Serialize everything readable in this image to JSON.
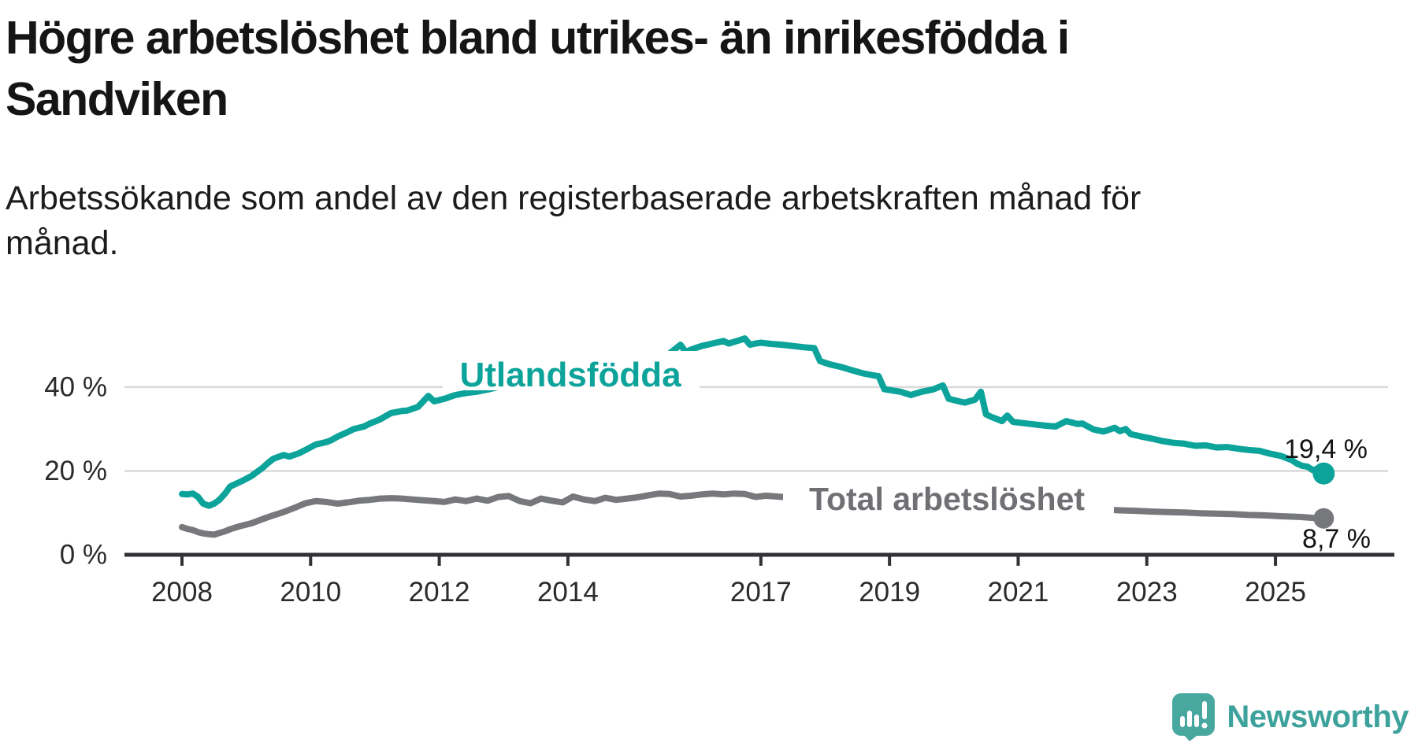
{
  "header": {
    "title_line1": "Högre arbetslöshet bland utrikes- än inrikesfödda i",
    "title_line2": "Sandviken",
    "subtitle_line1": "Arbetssökande som andel av den registerbaserade arbetskraften månad för",
    "subtitle_line2": "månad."
  },
  "chart_data": {
    "type": "line",
    "title": "Högre arbetslöshet bland utrikes- än inrikesfödda i Sandviken",
    "subtitle": "Arbetssökande som andel av den registerbaserade arbetskraften månad för månad.",
    "x_unit": "year, monthly observations",
    "xlim": [
      2007.8,
      2026.2
    ],
    "ylim": [
      0,
      55
    ],
    "grid": "horizontal",
    "legend_position": "inline-labels",
    "x_ticks": [
      {
        "value": 2008,
        "label": "2008"
      },
      {
        "value": 2010,
        "label": "2010"
      },
      {
        "value": 2012,
        "label": "2012"
      },
      {
        "value": 2014,
        "label": "2014"
      },
      {
        "value": 2017,
        "label": "2017"
      },
      {
        "value": 2019,
        "label": "2019"
      },
      {
        "value": 2021,
        "label": "2021"
      },
      {
        "value": 2023,
        "label": "2023"
      },
      {
        "value": 2025,
        "label": "2025"
      }
    ],
    "y_ticks": [
      {
        "value": 0,
        "label": "0 %"
      },
      {
        "value": 20,
        "label": "20 %"
      },
      {
        "value": 40,
        "label": "40 %"
      }
    ],
    "series": [
      {
        "id": "utlandsfodda",
        "name": "Utlandsfödda",
        "color": "#0ca39a",
        "end_label": "19,4 %",
        "end_value": 19.4,
        "points": [
          [
            2008.0,
            14.5
          ],
          [
            2008.08,
            14.4
          ],
          [
            2008.17,
            14.6
          ],
          [
            2008.25,
            13.8
          ],
          [
            2008.33,
            12.2
          ],
          [
            2008.42,
            11.7
          ],
          [
            2008.5,
            12.2
          ],
          [
            2008.58,
            13.1
          ],
          [
            2008.67,
            14.6
          ],
          [
            2008.75,
            16.3
          ],
          [
            2008.92,
            17.5
          ],
          [
            2009.08,
            18.8
          ],
          [
            2009.25,
            20.7
          ],
          [
            2009.33,
            21.8
          ],
          [
            2009.42,
            22.9
          ],
          [
            2009.58,
            23.8
          ],
          [
            2009.67,
            23.4
          ],
          [
            2009.83,
            24.3
          ],
          [
            2009.92,
            25.0
          ],
          [
            2010.08,
            26.3
          ],
          [
            2010.25,
            26.9
          ],
          [
            2010.33,
            27.4
          ],
          [
            2010.42,
            28.2
          ],
          [
            2010.58,
            29.3
          ],
          [
            2010.67,
            30.0
          ],
          [
            2010.83,
            30.6
          ],
          [
            2010.92,
            31.3
          ],
          [
            2011.08,
            32.3
          ],
          [
            2011.25,
            33.8
          ],
          [
            2011.42,
            34.3
          ],
          [
            2011.5,
            34.4
          ],
          [
            2011.67,
            35.3
          ],
          [
            2011.83,
            37.9
          ],
          [
            2011.92,
            36.6
          ],
          [
            2012.08,
            37.2
          ],
          [
            2012.25,
            38.1
          ],
          [
            2012.42,
            38.6
          ],
          [
            2012.58,
            38.9
          ],
          [
            2012.75,
            39.4
          ],
          [
            2012.92,
            40.0
          ],
          [
            2013.17,
            40.5
          ],
          [
            2013.42,
            41.2
          ],
          [
            2013.67,
            41.9
          ],
          [
            2013.92,
            42.6
          ],
          [
            2014.17,
            43.3
          ],
          [
            2014.42,
            44.0
          ],
          [
            2014.67,
            44.6
          ],
          [
            2014.92,
            45.1
          ],
          [
            2015.17,
            45.5
          ],
          [
            2015.42,
            46.6
          ],
          [
            2015.58,
            48.0
          ],
          [
            2015.75,
            50.1
          ],
          [
            2015.83,
            48.4
          ],
          [
            2015.92,
            49.0
          ],
          [
            2016.08,
            49.8
          ],
          [
            2016.25,
            50.4
          ],
          [
            2016.42,
            51.0
          ],
          [
            2016.5,
            50.4
          ],
          [
            2016.67,
            51.2
          ],
          [
            2016.75,
            51.6
          ],
          [
            2016.83,
            50.1
          ],
          [
            2016.92,
            50.4
          ],
          [
            2017.0,
            50.6
          ],
          [
            2017.17,
            50.3
          ],
          [
            2017.33,
            50.1
          ],
          [
            2017.5,
            49.8
          ],
          [
            2017.67,
            49.5
          ],
          [
            2017.83,
            49.3
          ],
          [
            2017.92,
            46.2
          ],
          [
            2018.08,
            45.4
          ],
          [
            2018.25,
            44.8
          ],
          [
            2018.42,
            44.0
          ],
          [
            2018.58,
            43.3
          ],
          [
            2018.75,
            42.8
          ],
          [
            2018.83,
            42.6
          ],
          [
            2018.92,
            39.5
          ],
          [
            2019.08,
            39.1
          ],
          [
            2019.17,
            38.9
          ],
          [
            2019.33,
            38.1
          ],
          [
            2019.5,
            38.9
          ],
          [
            2019.67,
            39.4
          ],
          [
            2019.83,
            40.4
          ],
          [
            2019.92,
            37.2
          ],
          [
            2020.08,
            36.6
          ],
          [
            2020.17,
            36.3
          ],
          [
            2020.33,
            37.0
          ],
          [
            2020.42,
            38.9
          ],
          [
            2020.5,
            33.5
          ],
          [
            2020.58,
            32.9
          ],
          [
            2020.75,
            31.9
          ],
          [
            2020.83,
            33.2
          ],
          [
            2020.92,
            31.7
          ],
          [
            2021.08,
            31.4
          ],
          [
            2021.25,
            31.1
          ],
          [
            2021.42,
            30.8
          ],
          [
            2021.58,
            30.6
          ],
          [
            2021.75,
            31.9
          ],
          [
            2021.92,
            31.2
          ],
          [
            2022.0,
            31.3
          ],
          [
            2022.17,
            29.9
          ],
          [
            2022.33,
            29.4
          ],
          [
            2022.5,
            30.3
          ],
          [
            2022.58,
            29.5
          ],
          [
            2022.67,
            30.0
          ],
          [
            2022.75,
            28.8
          ],
          [
            2022.92,
            28.2
          ],
          [
            2023.08,
            27.7
          ],
          [
            2023.25,
            27.1
          ],
          [
            2023.42,
            26.7
          ],
          [
            2023.58,
            26.5
          ],
          [
            2023.75,
            26.0
          ],
          [
            2023.92,
            26.1
          ],
          [
            2024.08,
            25.6
          ],
          [
            2024.25,
            25.7
          ],
          [
            2024.42,
            25.3
          ],
          [
            2024.58,
            25.0
          ],
          [
            2024.75,
            24.8
          ],
          [
            2024.92,
            24.1
          ],
          [
            2025.08,
            23.6
          ],
          [
            2025.25,
            22.6
          ],
          [
            2025.33,
            21.8
          ],
          [
            2025.42,
            21.2
          ],
          [
            2025.5,
            21.0
          ],
          [
            2025.58,
            20.2
          ],
          [
            2025.67,
            20.6
          ],
          [
            2025.75,
            19.4
          ]
        ]
      },
      {
        "id": "total",
        "name": "Total arbetslöshet",
        "color": "#77787c",
        "end_label": "8,7 %",
        "end_value": 8.7,
        "points": [
          [
            2008.0,
            6.6
          ],
          [
            2008.08,
            6.2
          ],
          [
            2008.17,
            5.9
          ],
          [
            2008.25,
            5.4
          ],
          [
            2008.33,
            5.1
          ],
          [
            2008.42,
            4.9
          ],
          [
            2008.5,
            4.8
          ],
          [
            2008.58,
            5.2
          ],
          [
            2008.67,
            5.6
          ],
          [
            2008.75,
            6.1
          ],
          [
            2008.83,
            6.5
          ],
          [
            2008.92,
            6.9
          ],
          [
            2009.08,
            7.5
          ],
          [
            2009.25,
            8.5
          ],
          [
            2009.42,
            9.4
          ],
          [
            2009.58,
            10.2
          ],
          [
            2009.75,
            11.2
          ],
          [
            2009.92,
            12.3
          ],
          [
            2010.08,
            12.8
          ],
          [
            2010.25,
            12.6
          ],
          [
            2010.42,
            12.2
          ],
          [
            2010.58,
            12.5
          ],
          [
            2010.75,
            12.9
          ],
          [
            2010.92,
            13.1
          ],
          [
            2011.08,
            13.4
          ],
          [
            2011.25,
            13.5
          ],
          [
            2011.42,
            13.4
          ],
          [
            2011.58,
            13.2
          ],
          [
            2011.75,
            13.0
          ],
          [
            2011.92,
            12.8
          ],
          [
            2012.08,
            12.6
          ],
          [
            2012.25,
            13.2
          ],
          [
            2012.42,
            12.8
          ],
          [
            2012.58,
            13.4
          ],
          [
            2012.75,
            12.9
          ],
          [
            2012.92,
            13.8
          ],
          [
            2013.08,
            14.0
          ],
          [
            2013.25,
            12.8
          ],
          [
            2013.42,
            12.3
          ],
          [
            2013.58,
            13.4
          ],
          [
            2013.75,
            12.9
          ],
          [
            2013.92,
            12.5
          ],
          [
            2014.08,
            13.9
          ],
          [
            2014.25,
            13.2
          ],
          [
            2014.42,
            12.8
          ],
          [
            2014.58,
            13.6
          ],
          [
            2014.75,
            13.1
          ],
          [
            2014.92,
            13.4
          ],
          [
            2015.08,
            13.7
          ],
          [
            2015.25,
            14.2
          ],
          [
            2015.42,
            14.6
          ],
          [
            2015.58,
            14.5
          ],
          [
            2015.75,
            13.9
          ],
          [
            2015.92,
            14.1
          ],
          [
            2016.08,
            14.4
          ],
          [
            2016.25,
            14.6
          ],
          [
            2016.42,
            14.4
          ],
          [
            2016.58,
            14.6
          ],
          [
            2016.75,
            14.5
          ],
          [
            2016.92,
            13.8
          ],
          [
            2017.08,
            14.1
          ],
          [
            2017.25,
            13.9
          ],
          [
            2017.42,
            13.7
          ],
          [
            2017.58,
            13.9
          ],
          [
            2017.75,
            13.7
          ],
          [
            2017.92,
            13.4
          ],
          [
            2018.17,
            13.1
          ],
          [
            2018.42,
            12.8
          ],
          [
            2018.67,
            12.6
          ],
          [
            2018.92,
            12.4
          ],
          [
            2019.17,
            12.2
          ],
          [
            2019.42,
            12.0
          ],
          [
            2019.67,
            11.9
          ],
          [
            2019.92,
            11.9
          ],
          [
            2020.17,
            12.1
          ],
          [
            2020.42,
            12.4
          ],
          [
            2020.67,
            12.2
          ],
          [
            2020.92,
            11.9
          ],
          [
            2021.17,
            11.6
          ],
          [
            2021.42,
            11.4
          ],
          [
            2021.67,
            11.2
          ],
          [
            2021.92,
            11.0
          ],
          [
            2022.08,
            10.9
          ],
          [
            2022.33,
            10.8
          ],
          [
            2022.58,
            10.6
          ],
          [
            2022.83,
            10.5
          ],
          [
            2023.08,
            10.3
          ],
          [
            2023.33,
            10.2
          ],
          [
            2023.58,
            10.1
          ],
          [
            2023.83,
            9.9
          ],
          [
            2024.08,
            9.8
          ],
          [
            2024.33,
            9.7
          ],
          [
            2024.58,
            9.5
          ],
          [
            2024.83,
            9.4
          ],
          [
            2025.08,
            9.2
          ],
          [
            2025.25,
            9.1
          ],
          [
            2025.42,
            9.0
          ],
          [
            2025.58,
            8.8
          ],
          [
            2025.75,
            8.7
          ]
        ]
      }
    ]
  },
  "footer": {
    "brand": "Newsworthy",
    "logo_color": "#48a79f",
    "text_color": "#3da29b"
  }
}
